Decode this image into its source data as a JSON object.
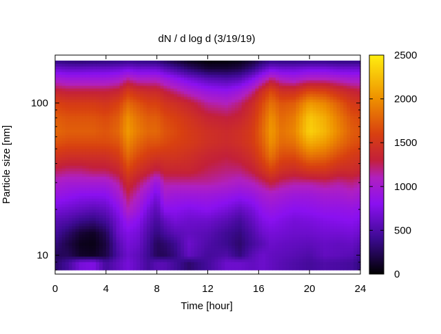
{
  "chart_data": {
    "type": "heatmap",
    "title": "dN / d log d (3/19/19)",
    "xlabel": "Time [hour]",
    "ylabel": "Particle size [nm]",
    "xlim": [
      0,
      24
    ],
    "ylim_log": [
      8,
      190
    ],
    "y_scale": "log",
    "x_ticks": [
      "0",
      "4",
      "8",
      "12",
      "16",
      "20",
      "24"
    ],
    "x_tick_values": [
      0,
      4,
      8,
      12,
      16,
      20,
      24
    ],
    "y_ticks": [
      "10",
      "100"
    ],
    "y_tick_values": [
      10,
      100
    ],
    "colorbar": {
      "range": [
        0,
        2500
      ],
      "ticks": [
        "0",
        "500",
        "1000",
        "1500",
        "2000",
        "2500"
      ],
      "tick_values": [
        0,
        500,
        1000,
        1500,
        2000,
        2500
      ],
      "palette": "black-purple-red-orange-yellow"
    },
    "size_bins_nm": [
      9,
      10,
      12,
      14,
      17,
      20,
      25,
      30,
      36,
      45,
      55,
      65,
      80,
      100,
      120,
      145,
      170,
      190
    ],
    "time_hours": [
      0,
      1,
      2,
      3,
      4,
      5,
      5.7,
      6.5,
      7.3,
      8,
      8.6,
      9.4,
      10.5,
      12,
      13.5,
      14.5,
      15.5,
      16.3,
      17,
      17.8,
      18.8,
      20,
      21.2,
      22.3,
      23.3,
      24
    ],
    "intensity": [
      [
        300,
        450,
        700,
        750,
        450,
        600,
        700,
        600,
        450,
        550,
        550,
        450,
        300,
        450,
        650,
        650,
        600,
        650,
        600,
        550,
        500,
        450,
        500,
        480,
        450,
        350
      ],
      [
        250,
        250,
        120,
        100,
        200,
        500,
        650,
        580,
        420,
        250,
        250,
        350,
        600,
        450,
        500,
        350,
        550,
        650,
        600,
        580,
        550,
        500,
        600,
        580,
        550,
        450
      ],
      [
        350,
        200,
        80,
        60,
        180,
        550,
        700,
        650,
        450,
        250,
        300,
        400,
        650,
        500,
        400,
        300,
        450,
        550,
        650,
        620,
        600,
        580,
        620,
        600,
        620,
        550
      ],
      [
        450,
        300,
        150,
        100,
        250,
        650,
        750,
        700,
        500,
        350,
        450,
        550,
        600,
        550,
        420,
        350,
        500,
        650,
        700,
        680,
        650,
        650,
        680,
        680,
        700,
        650
      ],
      [
        550,
        500,
        400,
        350,
        450,
        700,
        900,
        800,
        600,
        450,
        600,
        700,
        650,
        650,
        550,
        450,
        600,
        750,
        800,
        750,
        700,
        720,
        760,
        780,
        800,
        750
      ],
      [
        700,
        650,
        600,
        550,
        600,
        800,
        1100,
        950,
        700,
        550,
        800,
        800,
        750,
        800,
        700,
        600,
        700,
        850,
        900,
        850,
        800,
        820,
        860,
        860,
        880,
        850
      ],
      [
        900,
        850,
        800,
        800,
        800,
        1000,
        1250,
        1100,
        900,
        700,
        1000,
        950,
        950,
        950,
        900,
        850,
        900,
        1000,
        1050,
        1000,
        950,
        950,
        1000,
        1000,
        1050,
        1000
      ],
      [
        1050,
        1000,
        1000,
        1000,
        1000,
        1150,
        1400,
        1250,
        1100,
        900,
        1150,
        1150,
        1150,
        1150,
        1100,
        1050,
        1100,
        1200,
        1300,
        1200,
        1150,
        1150,
        1200,
        1150,
        1200,
        1150
      ],
      [
        1250,
        1200,
        1200,
        1250,
        1250,
        1350,
        1600,
        1450,
        1350,
        1250,
        1350,
        1350,
        1350,
        1250,
        1200,
        1200,
        1300,
        1450,
        1600,
        1450,
        1400,
        1500,
        1500,
        1400,
        1400,
        1350
      ],
      [
        1500,
        1450,
        1450,
        1450,
        1450,
        1550,
        1800,
        1650,
        1550,
        1500,
        1500,
        1500,
        1450,
        1350,
        1300,
        1350,
        1450,
        1650,
        1850,
        1650,
        1650,
        1850,
        1800,
        1650,
        1550,
        1500
      ],
      [
        1700,
        1650,
        1650,
        1650,
        1650,
        1700,
        1950,
        1800,
        1700,
        1700,
        1650,
        1600,
        1550,
        1450,
        1400,
        1450,
        1550,
        1750,
        2000,
        1800,
        1850,
        2150,
        2050,
        1850,
        1700,
        1650
      ],
      [
        1800,
        1750,
        1750,
        1750,
        1700,
        1800,
        2050,
        1900,
        1800,
        1800,
        1700,
        1650,
        1550,
        1450,
        1400,
        1450,
        1550,
        1800,
        2050,
        1850,
        1950,
        2350,
        2200,
        1950,
        1750,
        1700
      ],
      [
        1750,
        1700,
        1700,
        1700,
        1650,
        1750,
        2000,
        1850,
        1750,
        1750,
        1650,
        1600,
        1500,
        1350,
        1300,
        1350,
        1500,
        1750,
        2000,
        1800,
        1900,
        2300,
        2150,
        1900,
        1700,
        1650
      ],
      [
        1600,
        1550,
        1550,
        1550,
        1500,
        1600,
        1800,
        1700,
        1600,
        1600,
        1500,
        1450,
        1350,
        1150,
        1100,
        1200,
        1400,
        1650,
        1850,
        1700,
        1750,
        2050,
        1950,
        1750,
        1550,
        1500
      ],
      [
        1350,
        1300,
        1300,
        1300,
        1300,
        1350,
        1550,
        1450,
        1400,
        1400,
        1300,
        1200,
        1050,
        900,
        850,
        950,
        1150,
        1450,
        1650,
        1450,
        1450,
        1650,
        1600,
        1450,
        1350,
        1300
      ],
      [
        1000,
        950,
        950,
        950,
        950,
        1000,
        1150,
        1050,
        1050,
        1050,
        950,
        850,
        700,
        550,
        500,
        550,
        750,
        1000,
        1200,
        1050,
        1000,
        1100,
        1100,
        1050,
        1000,
        1000
      ],
      [
        650,
        600,
        600,
        620,
        620,
        650,
        700,
        650,
        650,
        650,
        550,
        450,
        300,
        150,
        150,
        200,
        350,
        550,
        700,
        650,
        650,
        700,
        700,
        650,
        650,
        650
      ],
      [
        350,
        320,
        300,
        320,
        330,
        350,
        380,
        350,
        340,
        330,
        260,
        180,
        80,
        20,
        30,
        60,
        150,
        280,
        360,
        340,
        340,
        360,
        360,
        340,
        340,
        340
      ]
    ]
  }
}
